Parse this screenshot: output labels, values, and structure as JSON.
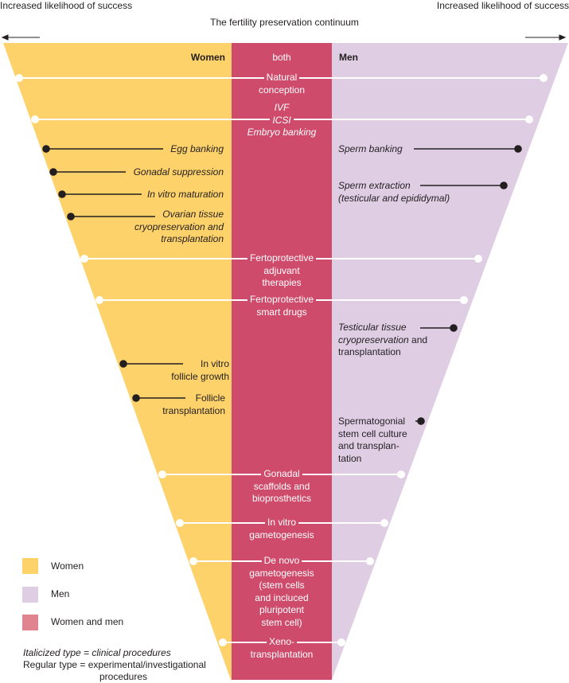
{
  "title": "The fertility preservation continuum",
  "left_axis": "Increased likelihood of success",
  "right_axis": "Increased likelihood of success",
  "headers": {
    "women": "Women",
    "both": "both",
    "men": "Men"
  },
  "colors": {
    "women": "#fdd26a",
    "both": "#ce4b6b",
    "men": "#dfcde4",
    "legend_both": "#e0848f"
  },
  "both": {
    "natural": [
      "Natural",
      "conception"
    ],
    "ivf": [
      "IVF",
      "ICSI",
      "Embryo banking"
    ],
    "adjuvant": [
      "Fertoprotective",
      "adjuvant",
      "therapies"
    ],
    "smart": [
      "Fertoprotective",
      "smart drugs"
    ],
    "scaffolds": [
      "Gonadal",
      "scaffolds and",
      "bioprosthetics"
    ],
    "ivg": [
      "In vitro",
      "gametogenesis"
    ],
    "denovo": [
      "De novo",
      "gametogenesis",
      "(stem cells",
      "and incluced",
      "pluripotent",
      "stem cell)"
    ],
    "xeno": [
      "Xeno-",
      "transplantation"
    ]
  },
  "women": {
    "egg": "Egg banking",
    "gonadal": "Gonadal suppression",
    "ivm": "In vitro maturation",
    "ovarian": [
      "Ovarian tissue",
      "cryopreservation and",
      "transplantation"
    ],
    "follicle_growth": [
      "In vitro",
      "follicle growth"
    ],
    "follicle_transplant": [
      "Follicle",
      "transplantation"
    ]
  },
  "men": {
    "sperm": "Sperm banking",
    "extraction": [
      "Sperm extraction",
      "(testicular and epididymal)"
    ],
    "testicular": [
      "Testicular tissue",
      "cryopreservation",
      " and",
      "transplantation"
    ],
    "spermatogonial": [
      "Spermatogonial",
      "stem cell culture",
      "and transplan-",
      "tation"
    ]
  },
  "legend": {
    "items": [
      {
        "label": "Women",
        "color": "#fdd26a"
      },
      {
        "label": "Men",
        "color": "#dfcde4"
      },
      {
        "label": "Women and men",
        "color": "#e0848f"
      }
    ],
    "note_italic": "Italicized type = clinical procedures",
    "note_regular": [
      "Regular type = experimental/investigational",
      "procedures"
    ]
  }
}
